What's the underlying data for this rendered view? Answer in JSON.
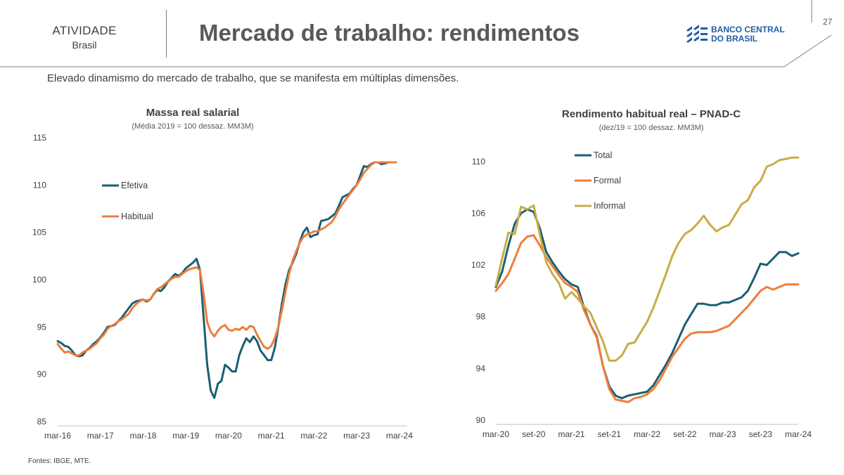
{
  "header": {
    "section": "ATIVIDADE",
    "region": "Brasil",
    "title": "Mercado de trabalho: rendimentos",
    "logo_line1": "BANCO CENTRAL",
    "logo_line2": "DO BRASIL",
    "page_number": "27"
  },
  "subtitle": "Elevado dinamismo do mercado de trabalho, que se manifesta em múltiplas dimensões.",
  "sources": "Fontes: IBGE, MTE.",
  "colors": {
    "teal": "#1b5f73",
    "orange": "#ef7d3b",
    "gold": "#c9ac45",
    "text": "#404040"
  },
  "chart_data": [
    {
      "type": "line",
      "title": "Massa real salarial",
      "subtitle": "(Média 2019 = 100 dessaz. MM3M)",
      "ylim": [
        85,
        115
      ],
      "yticks": [
        "85",
        "90",
        "95",
        "100",
        "105",
        "110",
        "115"
      ],
      "xlim": [
        0,
        98
      ],
      "xticks": [
        {
          "label": "mar-16",
          "x": 0
        },
        {
          "label": "mar-17",
          "x": 12
        },
        {
          "label": "mar-18",
          "x": 24
        },
        {
          "label": "mar-19",
          "x": 36
        },
        {
          "label": "mar-20",
          "x": 48
        },
        {
          "label": "mar-21",
          "x": 60
        },
        {
          "label": "mar-22",
          "x": 72
        },
        {
          "label": "mar-23",
          "x": 84
        },
        {
          "label": "mar-24",
          "x": 96
        }
      ],
      "legend": "left",
      "series": [
        {
          "name": "Efetiva",
          "color": "#1b5f73",
          "x": [
            0,
            1,
            2,
            3,
            4,
            5,
            6,
            7,
            8,
            9,
            10,
            11,
            12,
            13,
            14,
            15,
            16,
            17,
            18,
            19,
            20,
            21,
            22,
            23,
            24,
            25,
            26,
            27,
            28,
            29,
            30,
            31,
            32,
            33,
            34,
            35,
            36,
            37,
            38,
            39,
            40,
            41,
            42,
            43,
            44,
            45,
            46,
            47,
            48,
            49,
            50,
            51,
            52,
            53,
            54,
            55,
            56,
            57,
            58,
            59,
            60,
            61,
            62,
            63,
            64,
            65,
            66,
            67,
            68,
            69,
            70,
            71,
            72,
            73,
            74,
            75,
            76,
            77,
            78,
            79,
            80,
            81,
            82,
            83,
            84,
            85,
            86,
            87,
            88,
            89,
            90,
            91,
            92,
            93,
            94,
            95
          ],
          "values": [
            93.5,
            93.3,
            93.0,
            92.9,
            92.5,
            92.0,
            91.9,
            92.0,
            92.5,
            92.8,
            93.2,
            93.5,
            93.9,
            94.4,
            95.0,
            95.1,
            95.2,
            95.6,
            96.0,
            96.5,
            97.0,
            97.5,
            97.7,
            97.8,
            97.9,
            97.7,
            97.9,
            98.5,
            98.9,
            98.8,
            99.2,
            99.8,
            100.2,
            100.6,
            100.4,
            100.7,
            101.2,
            101.5,
            101.8,
            102.2,
            101.0,
            96.0,
            91.0,
            88.3,
            87.5,
            89.0,
            89.3,
            91.0,
            90.7,
            90.3,
            90.3,
            92.0,
            93.0,
            93.8,
            93.4,
            94.0,
            93.5,
            92.5,
            92.0,
            91.5,
            91.5,
            92.8,
            95.0,
            97.5,
            99.5,
            101.0,
            101.8,
            102.7,
            104.0,
            105.0,
            105.5,
            104.5,
            104.7,
            104.8,
            106.2,
            106.3,
            106.4,
            106.7,
            107.0,
            107.8,
            108.7,
            108.9,
            109.1,
            109.6,
            110.0,
            111.0,
            112.0,
            111.9,
            112.2,
            112.4,
            112.4,
            112.2,
            112.3,
            112.4,
            112.4,
            112.4
          ]
        },
        {
          "name": "Habitual",
          "color": "#ef7d3b",
          "x": [
            0,
            1,
            2,
            3,
            4,
            5,
            6,
            7,
            8,
            9,
            10,
            11,
            12,
            13,
            14,
            15,
            16,
            17,
            18,
            19,
            20,
            21,
            22,
            23,
            24,
            25,
            26,
            27,
            28,
            29,
            30,
            31,
            32,
            33,
            34,
            35,
            36,
            37,
            38,
            39,
            40,
            41,
            42,
            43,
            44,
            45,
            46,
            47,
            48,
            49,
            50,
            51,
            52,
            53,
            54,
            55,
            56,
            57,
            58,
            59,
            60,
            61,
            62,
            63,
            64,
            65,
            66,
            67,
            68,
            69,
            70,
            71,
            72,
            73,
            74,
            75,
            76,
            77,
            78,
            79,
            80,
            81,
            82,
            83,
            84,
            85,
            86,
            87,
            88,
            89,
            90,
            91,
            92,
            93,
            94,
            95
          ],
          "values": [
            93.2,
            92.7,
            92.3,
            92.4,
            92.2,
            92.0,
            92.0,
            92.3,
            92.5,
            92.7,
            93.0,
            93.3,
            93.8,
            94.2,
            94.8,
            95.1,
            95.3,
            95.6,
            95.8,
            96.1,
            96.4,
            97.0,
            97.4,
            97.7,
            97.9,
            97.8,
            97.9,
            98.5,
            99.0,
            99.2,
            99.5,
            99.8,
            100.1,
            100.3,
            100.3,
            100.6,
            100.9,
            101.1,
            101.2,
            101.3,
            101.0,
            98.5,
            95.5,
            94.5,
            94.0,
            94.6,
            95.0,
            95.2,
            94.7,
            94.6,
            94.8,
            94.7,
            95.0,
            94.7,
            95.1,
            95.0,
            94.2,
            93.5,
            92.9,
            92.7,
            93.0,
            93.8,
            95.0,
            96.8,
            98.7,
            100.6,
            102.0,
            103.0,
            103.9,
            104.5,
            104.8,
            104.9,
            105.1,
            105.1,
            105.3,
            105.5,
            105.8,
            106.1,
            106.7,
            107.4,
            108.0,
            108.5,
            109.0,
            109.5,
            110.0,
            110.6,
            111.3,
            111.7,
            112.1,
            112.4,
            112.4,
            112.4,
            112.4,
            112.4,
            112.4,
            112.4
          ]
        }
      ]
    },
    {
      "type": "line",
      "title": "Rendimento habitual real – PNAD-C",
      "subtitle": "(dez/19 = 100 dessaz. MM3M)",
      "ylim": [
        90,
        112
      ],
      "yticks": [
        "90",
        "94",
        "98",
        "102",
        "106",
        "110"
      ],
      "xlim": [
        0,
        48
      ],
      "xticks": [
        {
          "label": "mar-20",
          "x": 0
        },
        {
          "label": "set-20",
          "x": 6
        },
        {
          "label": "mar-21",
          "x": 12
        },
        {
          "label": "set-21",
          "x": 18
        },
        {
          "label": "mar-22",
          "x": 24
        },
        {
          "label": "set-22",
          "x": 30
        },
        {
          "label": "mar-23",
          "x": 36
        },
        {
          "label": "set-23",
          "x": 42
        },
        {
          "label": "mar-24",
          "x": 48
        }
      ],
      "legend": "top-left",
      "series": [
        {
          "name": "Total",
          "color": "#1b5f73",
          "x": [
            0,
            1,
            2,
            3,
            4,
            5,
            6,
            7,
            8,
            9,
            10,
            11,
            12,
            13,
            14,
            15,
            16,
            17,
            18,
            19,
            20,
            21,
            22,
            23,
            24,
            25,
            26,
            27,
            28,
            29,
            30,
            31,
            32,
            33,
            34,
            35,
            36,
            37,
            38,
            39,
            40,
            41,
            42,
            43,
            44,
            45,
            46,
            47,
            48
          ],
          "values": [
            100.3,
            101.5,
            103.5,
            105.2,
            106.0,
            106.3,
            106.1,
            104.8,
            103.0,
            102.2,
            101.5,
            100.9,
            100.5,
            100.3,
            98.7,
            97.4,
            96.5,
            94.2,
            92.6,
            91.9,
            91.7,
            91.9,
            92.0,
            92.1,
            92.2,
            92.7,
            93.5,
            94.3,
            95.2,
            96.3,
            97.4,
            98.2,
            99.0,
            99.0,
            98.9,
            98.9,
            99.1,
            99.1,
            99.3,
            99.5,
            100.0,
            101.0,
            102.1,
            102.0,
            102.5,
            103.0,
            103.0,
            102.7,
            102.9
          ]
        },
        {
          "name": "Formal",
          "color": "#ef7d3b",
          "x": [
            0,
            1,
            2,
            3,
            4,
            5,
            6,
            7,
            8,
            9,
            10,
            11,
            12,
            13,
            14,
            15,
            16,
            17,
            18,
            19,
            20,
            21,
            22,
            23,
            24,
            25,
            26,
            27,
            28,
            29,
            30,
            31,
            32,
            33,
            34,
            35,
            36,
            37,
            38,
            39,
            40,
            41,
            42,
            43,
            44,
            45,
            46,
            47,
            48
          ],
          "values": [
            100.0,
            100.6,
            101.3,
            102.5,
            103.7,
            104.2,
            104.3,
            103.5,
            102.6,
            101.9,
            101.2,
            100.6,
            100.3,
            99.9,
            98.5,
            97.4,
            96.4,
            94.2,
            92.4,
            91.6,
            91.5,
            91.4,
            91.7,
            91.8,
            92.0,
            92.4,
            93.1,
            94.0,
            94.9,
            95.6,
            96.3,
            96.7,
            96.8,
            96.8,
            96.8,
            96.9,
            97.1,
            97.3,
            97.8,
            98.3,
            98.8,
            99.4,
            100.0,
            100.3,
            100.1,
            100.3,
            100.5,
            100.5,
            100.5
          ]
        },
        {
          "name": "Informal",
          "color": "#c9ac45",
          "x": [
            0,
            1,
            2,
            3,
            4,
            5,
            6,
            7,
            8,
            9,
            10,
            11,
            12,
            13,
            14,
            15,
            16,
            17,
            18,
            19,
            20,
            21,
            22,
            23,
            24,
            25,
            26,
            27,
            28,
            29,
            30,
            31,
            32,
            33,
            34,
            35,
            36,
            37,
            38,
            39,
            40,
            41,
            42,
            43,
            44,
            45,
            46,
            47,
            48
          ],
          "values": [
            100.4,
            102.5,
            104.5,
            104.4,
            106.5,
            106.3,
            106.6,
            104.3,
            102.2,
            101.3,
            100.6,
            99.4,
            99.9,
            99.4,
            98.8,
            98.3,
            97.2,
            96.1,
            94.6,
            94.6,
            95.0,
            95.9,
            96.0,
            96.8,
            97.6,
            98.7,
            100.0,
            101.3,
            102.7,
            103.7,
            104.4,
            104.7,
            105.2,
            105.8,
            105.1,
            104.6,
            104.9,
            105.1,
            105.9,
            106.7,
            107.0,
            108.0,
            108.5,
            109.6,
            109.8,
            110.1,
            110.2,
            110.3,
            110.3
          ]
        }
      ]
    }
  ]
}
